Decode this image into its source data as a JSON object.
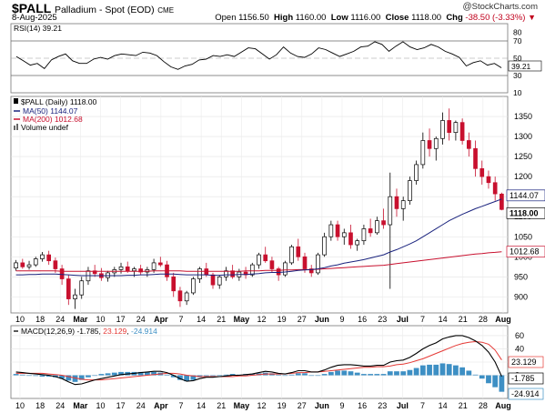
{
  "header": {
    "symbol": "$PALL",
    "description": "Palladium - Spot (EOD)",
    "exchange": "CME",
    "date": "8-Aug-2025",
    "copyright_symbol": "@",
    "copyright": "StockCharts.com",
    "open_label": "Open",
    "open": "1156.50",
    "high_label": "High",
    "high": "1160.00",
    "low_label": "Low",
    "low": "1116.00",
    "close_label": "Close",
    "close": "1118.00",
    "chg_label": "Chg",
    "chg": "-38.50 (-3.33%)",
    "chg_arrow": "▼"
  },
  "colors": {
    "up_candle": "#000000",
    "down_candle": "#c8102e",
    "ma50": "#1a237e",
    "ma200": "#c8102e",
    "macd_line": "#000000",
    "signal_line": "#e53935",
    "histogram": "#3d8fc4",
    "rsi_line": "#000000"
  },
  "chart_data": [
    {
      "type": "line",
      "panel": "RSI",
      "legend": "RSI(14) 39.21",
      "current_value": "39.21",
      "ylim": [
        10,
        90
      ],
      "ticks": [
        "80",
        "70",
        "50",
        "30",
        "10"
      ],
      "reference_lines": [
        70,
        30
      ],
      "values": [
        52,
        47,
        42,
        44,
        38,
        48,
        52,
        55,
        47,
        44,
        44,
        49,
        51,
        49,
        53,
        55,
        54,
        53,
        57,
        56,
        53,
        46,
        40,
        37,
        41,
        43,
        48,
        49,
        53,
        52,
        54,
        52,
        57,
        62,
        61,
        55,
        49,
        54,
        63,
        56,
        52,
        51,
        55,
        62,
        60,
        56,
        52,
        55,
        58,
        63,
        64,
        69,
        66,
        58,
        64,
        69,
        63,
        60,
        62,
        66,
        63,
        58,
        55,
        51,
        41,
        45,
        47,
        42,
        44,
        39
      ]
    },
    {
      "type": "candlestick",
      "panel": "price",
      "legend": {
        "price": "$PALL (Daily) 1118.00",
        "ma50": "MA(50) 1144.07",
        "ma200": "MA(200) 1012.68",
        "volume": "Volume undef"
      },
      "ylim": [
        860,
        1400
      ],
      "ticks": [
        "1350",
        "1300",
        "1250",
        "1200",
        "1150",
        "1100",
        "1050",
        "1000",
        "950",
        "900"
      ],
      "last_labels": {
        "ma50": "1144.07",
        "close": "1118.00",
        "ma200": "1012.68"
      },
      "x_ticks": [
        "10",
        "18",
        "24",
        "Mar",
        "10",
        "17",
        "24",
        "Apr",
        "7",
        "14",
        "21",
        "May",
        "12",
        "19",
        "27",
        "Jun",
        "9",
        "16",
        "23",
        "Jul",
        "7",
        "14",
        "21",
        "28",
        "Aug"
      ],
      "x_ticks_bold": [
        "Mar",
        "Apr",
        "May",
        "Jun",
        "Jul",
        "Aug"
      ],
      "candles": [
        [
          972,
          992,
          965,
          985
        ],
        [
          985,
          995,
          970,
          975
        ],
        [
          975,
          990,
          968,
          980
        ],
        [
          980,
          1000,
          975,
          995
        ],
        [
          995,
          1012,
          988,
          1005
        ],
        [
          1005,
          1015,
          980,
          990
        ],
        [
          990,
          998,
          960,
          970
        ],
        [
          970,
          980,
          930,
          945
        ],
        [
          945,
          955,
          880,
          895
        ],
        [
          895,
          920,
          870,
          905
        ],
        [
          905,
          950,
          895,
          940
        ],
        [
          940,
          975,
          930,
          965
        ],
        [
          965,
          980,
          950,
          958
        ],
        [
          958,
          972,
          940,
          948
        ],
        [
          948,
          965,
          938,
          960
        ],
        [
          960,
          975,
          950,
          968
        ],
        [
          968,
          985,
          958,
          975
        ],
        [
          975,
          988,
          960,
          965
        ],
        [
          965,
          975,
          950,
          970
        ],
        [
          970,
          980,
          955,
          962
        ],
        [
          962,
          975,
          950,
          968
        ],
        [
          968,
          995,
          960,
          985
        ],
        [
          985,
          1000,
          975,
          980
        ],
        [
          980,
          990,
          940,
          950
        ],
        [
          950,
          960,
          900,
          915
        ],
        [
          915,
          925,
          875,
          890
        ],
        [
          890,
          915,
          880,
          910
        ],
        [
          910,
          950,
          905,
          945
        ],
        [
          945,
          975,
          935,
          970
        ],
        [
          970,
          985,
          950,
          955
        ],
        [
          955,
          960,
          920,
          930
        ],
        [
          930,
          955,
          920,
          950
        ],
        [
          950,
          975,
          940,
          965
        ],
        [
          965,
          980,
          945,
          950
        ],
        [
          950,
          970,
          940,
          962
        ],
        [
          962,
          975,
          945,
          955
        ],
        [
          955,
          985,
          950,
          980
        ],
        [
          980,
          1010,
          970,
          1005
        ],
        [
          1005,
          1025,
          985,
          990
        ],
        [
          990,
          1000,
          960,
          970
        ],
        [
          970,
          975,
          940,
          955
        ],
        [
          955,
          990,
          950,
          985
        ],
        [
          985,
          1030,
          980,
          1025
        ],
        [
          1025,
          1045,
          990,
          1000
        ],
        [
          1000,
          1010,
          960,
          970
        ],
        [
          970,
          980,
          950,
          960
        ],
        [
          960,
          1010,
          955,
          1005
        ],
        [
          1005,
          1060,
          1000,
          1050
        ],
        [
          1050,
          1090,
          1040,
          1080
        ],
        [
          1080,
          1090,
          1040,
          1050
        ],
        [
          1050,
          1070,
          1030,
          1060
        ],
        [
          1060,
          1080,
          1020,
          1030
        ],
        [
          1030,
          1045,
          1015,
          1040
        ],
        [
          1040,
          1080,
          1030,
          1070
        ],
        [
          1070,
          1095,
          1050,
          1060
        ],
        [
          1060,
          1100,
          1055,
          1090
        ],
        [
          1090,
          1120,
          1070,
          1080
        ],
        [
          1080,
          1210,
          920,
          1150
        ],
        [
          1150,
          1170,
          1100,
          1120
        ],
        [
          1120,
          1150,
          1090,
          1140
        ],
        [
          1140,
          1200,
          1130,
          1190
        ],
        [
          1190,
          1240,
          1180,
          1230
        ],
        [
          1230,
          1310,
          1220,
          1290
        ],
        [
          1290,
          1320,
          1250,
          1270
        ],
        [
          1270,
          1300,
          1240,
          1295
        ],
        [
          1295,
          1360,
          1280,
          1340
        ],
        [
          1340,
          1370,
          1290,
          1310
        ],
        [
          1310,
          1340,
          1290,
          1335
        ],
        [
          1335,
          1345,
          1280,
          1290
        ],
        [
          1290,
          1310,
          1250,
          1270
        ],
        [
          1270,
          1290,
          1200,
          1220
        ],
        [
          1220,
          1240,
          1180,
          1200
        ],
        [
          1200,
          1215,
          1170,
          1185
        ],
        [
          1185,
          1200,
          1140,
          1157
        ],
        [
          1156.5,
          1160,
          1116,
          1118
        ]
      ],
      "ma50": [
        955,
        955,
        956,
        956,
        957,
        957,
        957,
        956,
        955,
        954,
        953,
        953,
        953,
        953,
        953,
        953,
        953,
        954,
        954,
        955,
        955,
        956,
        957,
        957,
        957,
        956,
        955,
        955,
        955,
        955,
        954,
        954,
        955,
        955,
        956,
        956,
        957,
        958,
        960,
        961,
        961,
        962,
        964,
        966,
        967,
        968,
        970,
        973,
        977,
        980,
        984,
        987,
        990,
        993,
        997,
        1001,
        1005,
        1012,
        1018,
        1025,
        1032,
        1040,
        1050,
        1060,
        1070,
        1080,
        1090,
        1098,
        1106,
        1113,
        1120,
        1126,
        1132,
        1138,
        1144.07
      ],
      "ma200": [
        965,
        965,
        965,
        965,
        965,
        965,
        965,
        964,
        964,
        964,
        964,
        964,
        964,
        964,
        964,
        964,
        964,
        964,
        964,
        964,
        964,
        965,
        965,
        965,
        965,
        965,
        964,
        964,
        964,
        964,
        964,
        964,
        964,
        964,
        964,
        965,
        965,
        965,
        966,
        966,
        966,
        967,
        967,
        968,
        968,
        968,
        969,
        970,
        971,
        972,
        973,
        974,
        975,
        976,
        977,
        978,
        979,
        981,
        983,
        985,
        987,
        989,
        991,
        993,
        995,
        997,
        999,
        1001,
        1003,
        1005,
        1007,
        1008,
        1010,
        1011,
        1012.68
      ]
    },
    {
      "type": "line",
      "panel": "MACD",
      "legend_prefix": "MACD(12,26,9)",
      "legend_macd": "-1.785",
      "legend_signal": "23.129",
      "legend_hist": "-24.914",
      "ylim": [
        -35,
        75
      ],
      "ticks": [
        "60",
        "40",
        "20",
        "0"
      ],
      "last_labels": {
        "signal": "23.129",
        "macd": "-1.785",
        "hist": "-24.914"
      },
      "macd": [
        5,
        4,
        3,
        2,
        1,
        0,
        -2,
        -5,
        -10,
        -14,
        -13,
        -10,
        -7,
        -5,
        -3,
        -1,
        1,
        2,
        3,
        4,
        5,
        6,
        6,
        4,
        0,
        -5,
        -9,
        -8,
        -5,
        -3,
        -3,
        -2,
        -1,
        0,
        0,
        1,
        2,
        4,
        6,
        5,
        3,
        2,
        4,
        7,
        7,
        5,
        5,
        8,
        12,
        15,
        16,
        16,
        15,
        14,
        14,
        15,
        15,
        20,
        22,
        23,
        27,
        33,
        40,
        45,
        49,
        55,
        58,
        60,
        60,
        57,
        52,
        45,
        35,
        20,
        -1.785
      ],
      "signal": [
        3,
        3,
        3,
        3,
        3,
        2,
        1,
        0,
        -2,
        -4,
        -6,
        -7,
        -7,
        -7,
        -6,
        -5,
        -4,
        -3,
        -2,
        -1,
        0,
        1,
        2,
        3,
        3,
        2,
        0,
        -1,
        -2,
        -2,
        -2,
        -2,
        -2,
        -2,
        -1,
        -1,
        0,
        1,
        2,
        2,
        2,
        2,
        3,
        4,
        4,
        5,
        5,
        6,
        7,
        8,
        9,
        10,
        11,
        12,
        12,
        13,
        13,
        14,
        16,
        17,
        19,
        22,
        25,
        29,
        33,
        37,
        41,
        45,
        48,
        50,
        51,
        50,
        47,
        38,
        23.129
      ]
    }
  ]
}
